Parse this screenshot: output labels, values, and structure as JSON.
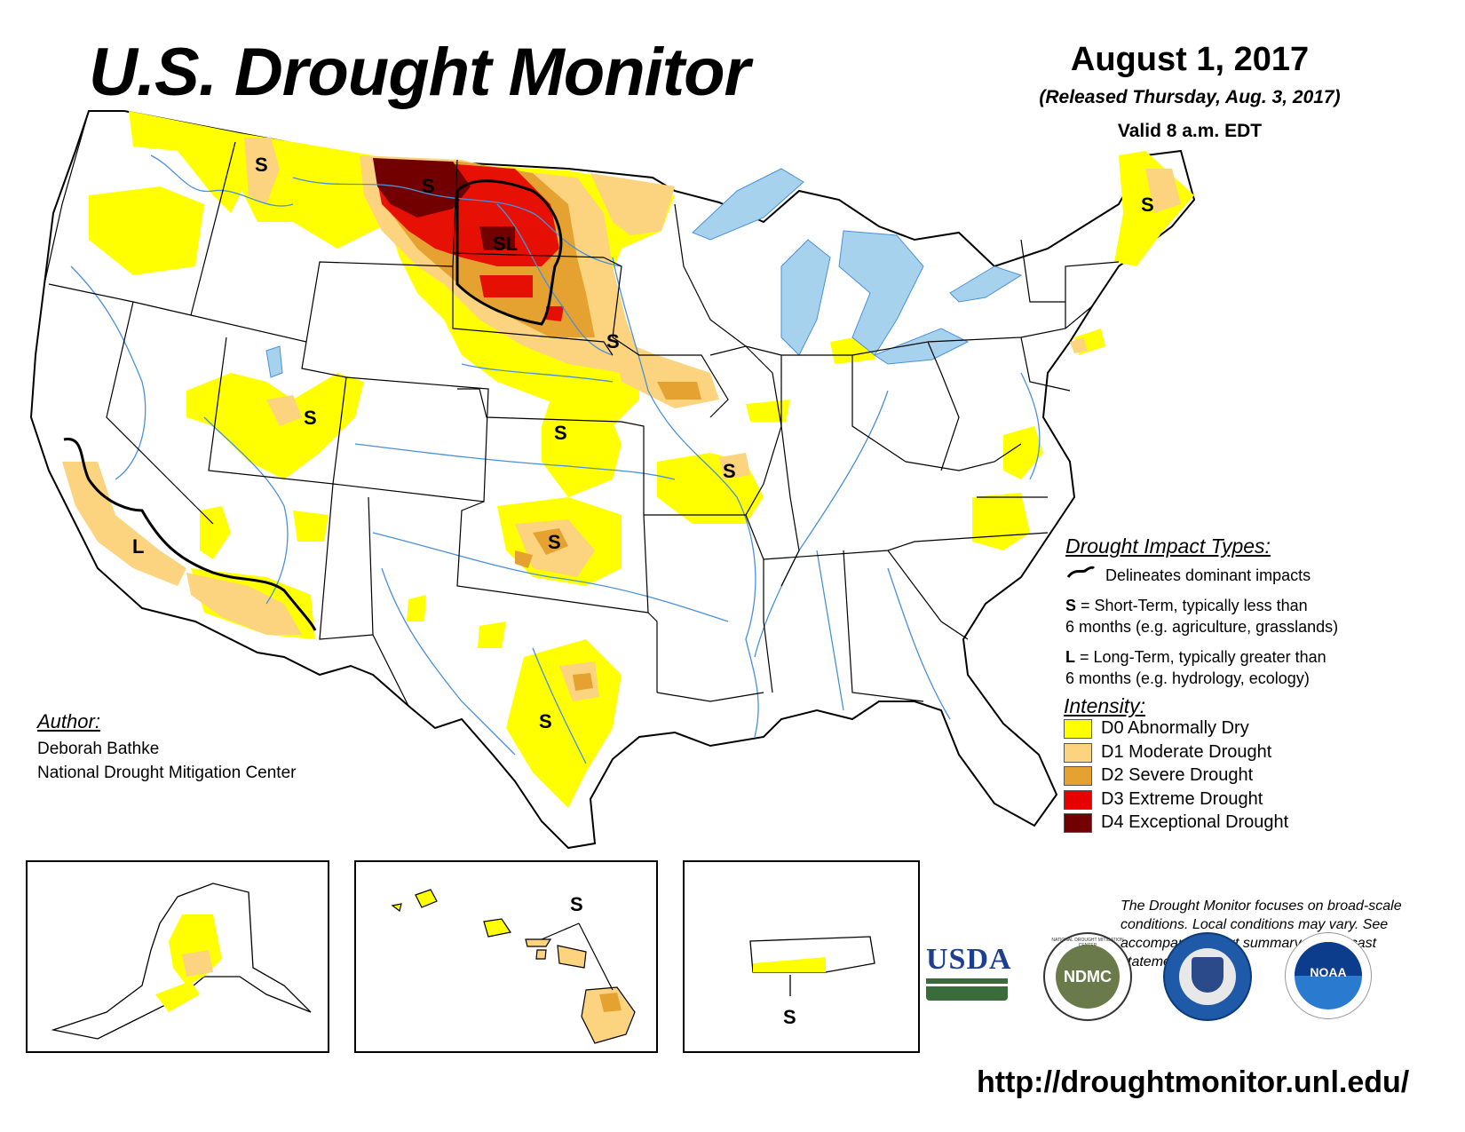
{
  "title": "U.S. Drought Monitor",
  "date": "August 1, 2017",
  "released": "(Released Thursday, Aug. 3, 2017)",
  "valid": "Valid 8 a.m. EDT",
  "impact_types": {
    "heading": "Drought Impact Types:",
    "delineates": "Delineates dominant impacts",
    "short_term_key": "S",
    "short_term_text": "= Short-Term, typically less than",
    "short_term_text2": "6 months (e.g. agriculture, grasslands)",
    "long_term_key": "L",
    "long_term_text": "= Long-Term, typically greater than",
    "long_term_text2": "6 months (e.g. hydrology, ecology)"
  },
  "intensity": {
    "heading": "Intensity:",
    "items": [
      {
        "label": "D0 Abnormally Dry",
        "color": "#ffff00"
      },
      {
        "label": "D1 Moderate Drought",
        "color": "#fcd37f"
      },
      {
        "label": "D2 Severe Drought",
        "color": "#e6a230"
      },
      {
        "label": "D3 Extreme Drought",
        "color": "#e60000"
      },
      {
        "label": "D4 Exceptional Drought",
        "color": "#730000"
      }
    ]
  },
  "author": {
    "heading": "Author:",
    "name": "Deborah Bathke",
    "org": "National Drought Mitigation Center"
  },
  "note": "The Drought Monitor focuses on broad-scale conditions. Local conditions may vary. See accompanying text summary for forecast statements.",
  "url": "http://droughtmonitor.unl.edu/",
  "logos": {
    "usda": "USDA",
    "ndmc": "NDMC",
    "ndmc_ring": "NATIONAL DROUGHT MITIGATION CENTER",
    "noaa": "NOAA"
  },
  "map_labels": {
    "s": "S",
    "l": "L",
    "sl": "SL"
  },
  "colors": {
    "water": "#a6d2ee",
    "rivers": "#4a90d9",
    "borders": "#000000"
  }
}
